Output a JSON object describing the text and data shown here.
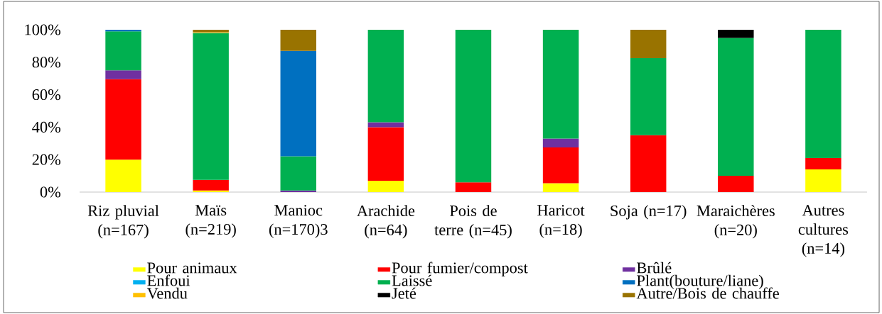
{
  "chart_data": {
    "type": "bar",
    "stacked": true,
    "legend": "bottom",
    "categories": [
      "Riz pluvial (n=167)",
      "Maïs (n=219)",
      "Manioc (n=170)3",
      "Arachide (n=64)",
      "Pois de terre (n=45)",
      "Haricot (n=18)",
      "Soja (n=17)",
      "Maraichères (n=20)",
      "Autres cultures (n=14)"
    ],
    "series": [
      {
        "name": "Pour animaux",
        "color": "#ffff00",
        "values": [
          20,
          1,
          null,
          7,
          null,
          5.5,
          null,
          null,
          14
        ]
      },
      {
        "name": "Pour fumier/compost",
        "color": "#ff0000",
        "values": [
          49.5,
          6.5,
          null,
          33,
          6,
          22,
          35,
          10,
          7
        ]
      },
      {
        "name": "Brûlé",
        "color": "#7030a0",
        "values": [
          5.5,
          null,
          1,
          3,
          null,
          5.5,
          null,
          null,
          null
        ]
      },
      {
        "name": "Enfoui",
        "color": "#00b0f0",
        "values": [
          null,
          null,
          null,
          null,
          null,
          null,
          null,
          null,
          null
        ]
      },
      {
        "name": "Laissé",
        "color": "#00b050",
        "values": [
          24,
          90.5,
          21,
          57,
          94,
          67,
          47.5,
          85,
          79
        ]
      },
      {
        "name": "Plant(bouture/liane)",
        "color": "#0070c0",
        "values": [
          1,
          null,
          65,
          null,
          null,
          null,
          null,
          null,
          null
        ]
      },
      {
        "name": "Vendu",
        "color": "#ffc000",
        "values": [
          null,
          0.5,
          null,
          null,
          null,
          null,
          null,
          null,
          null
        ]
      },
      {
        "name": "Jeté",
        "color": "#000000",
        "values": [
          null,
          null,
          null,
          null,
          null,
          null,
          null,
          5,
          null
        ]
      },
      {
        "name": "Autre/Bois de chauffe",
        "color": "#997300",
        "values": [
          null,
          1.5,
          13,
          null,
          null,
          null,
          17.5,
          null,
          null
        ]
      }
    ],
    "ylim": [
      0,
      100
    ],
    "yticks": [
      {
        "value": 0,
        "label": "0%"
      },
      {
        "value": 20,
        "label": "20%"
      },
      {
        "value": 40,
        "label": "40%"
      },
      {
        "value": 60,
        "label": "60%"
      },
      {
        "value": 80,
        "label": "80%"
      },
      {
        "value": 100,
        "label": "100%"
      }
    ]
  }
}
